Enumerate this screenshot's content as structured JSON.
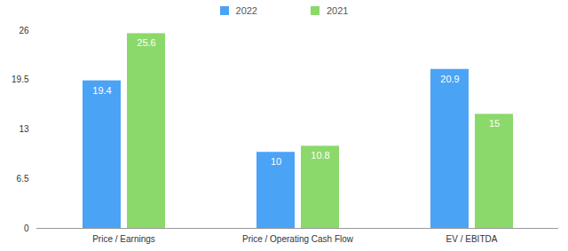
{
  "chart_data": {
    "type": "bar",
    "categories": [
      "Price / Earnings",
      "Price / Operating Cash Flow",
      "EV / EBITDA"
    ],
    "series": [
      {
        "name": "2022",
        "color": "#4ba3f6",
        "values": [
          19.4,
          10,
          20.9
        ]
      },
      {
        "name": "2021",
        "color": "#8bd96a",
        "values": [
          25.6,
          10.8,
          15
        ]
      }
    ],
    "ylim": [
      0,
      26
    ],
    "yticks": [
      0,
      6.5,
      13,
      19.5,
      26
    ],
    "grid": false,
    "legend": "top",
    "data_labels": true
  }
}
